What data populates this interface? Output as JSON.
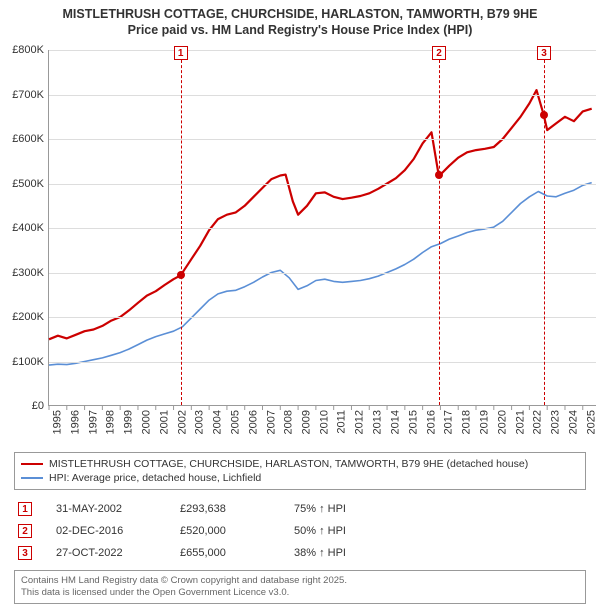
{
  "title": {
    "line1": "MISTLETHRUSH COTTAGE, CHURCHSIDE, HARLASTON, TAMWORTH, B79 9HE",
    "line2": "Price paid vs. HM Land Registry's House Price Index (HPI)"
  },
  "chart": {
    "type": "line",
    "background_color": "#ffffff",
    "grid_color": "#dddddd",
    "axis_color": "#999999",
    "xlim": [
      1995,
      2025.8
    ],
    "ylim": [
      0,
      800000
    ],
    "y_ticks": [
      0,
      100000,
      200000,
      300000,
      400000,
      500000,
      600000,
      700000,
      800000
    ],
    "y_tick_labels": [
      "£0",
      "£100K",
      "£200K",
      "£300K",
      "£400K",
      "£500K",
      "£600K",
      "£700K",
      "£800K"
    ],
    "x_ticks": [
      1995,
      1996,
      1997,
      1998,
      1999,
      2000,
      2001,
      2002,
      2003,
      2004,
      2005,
      2006,
      2007,
      2008,
      2009,
      2010,
      2011,
      2012,
      2013,
      2014,
      2015,
      2016,
      2017,
      2018,
      2019,
      2020,
      2021,
      2022,
      2023,
      2024,
      2025
    ],
    "series": [
      {
        "name": "price_paid",
        "label": "MISTLETHRUSH COTTAGE, CHURCHSIDE, HARLASTON, TAMWORTH, B79 9HE (detached house)",
        "color": "#cc0000",
        "line_width": 2.2,
        "points": [
          [
            1995.0,
            150000
          ],
          [
            1995.5,
            158000
          ],
          [
            1996.0,
            152000
          ],
          [
            1996.5,
            160000
          ],
          [
            1997.0,
            168000
          ],
          [
            1997.5,
            172000
          ],
          [
            1998.0,
            180000
          ],
          [
            1998.5,
            192000
          ],
          [
            1999.0,
            200000
          ],
          [
            1999.5,
            215000
          ],
          [
            2000.0,
            232000
          ],
          [
            2000.5,
            248000
          ],
          [
            2001.0,
            258000
          ],
          [
            2001.5,
            272000
          ],
          [
            2002.0,
            285000
          ],
          [
            2002.4,
            293638
          ],
          [
            2003.0,
            330000
          ],
          [
            2003.5,
            360000
          ],
          [
            2004.0,
            395000
          ],
          [
            2004.5,
            420000
          ],
          [
            2005.0,
            430000
          ],
          [
            2005.5,
            435000
          ],
          [
            2006.0,
            450000
          ],
          [
            2006.5,
            470000
          ],
          [
            2007.0,
            490000
          ],
          [
            2007.5,
            510000
          ],
          [
            2008.0,
            518000
          ],
          [
            2008.3,
            520000
          ],
          [
            2008.7,
            460000
          ],
          [
            2009.0,
            430000
          ],
          [
            2009.5,
            450000
          ],
          [
            2010.0,
            478000
          ],
          [
            2010.5,
            480000
          ],
          [
            2011.0,
            470000
          ],
          [
            2011.5,
            465000
          ],
          [
            2012.0,
            468000
          ],
          [
            2012.5,
            472000
          ],
          [
            2013.0,
            478000
          ],
          [
            2013.5,
            488000
          ],
          [
            2014.0,
            500000
          ],
          [
            2014.5,
            512000
          ],
          [
            2015.0,
            530000
          ],
          [
            2015.5,
            555000
          ],
          [
            2016.0,
            590000
          ],
          [
            2016.5,
            615000
          ],
          [
            2016.9,
            520000
          ],
          [
            2017.0,
            520000
          ],
          [
            2017.5,
            540000
          ],
          [
            2018.0,
            558000
          ],
          [
            2018.5,
            570000
          ],
          [
            2019.0,
            575000
          ],
          [
            2019.5,
            578000
          ],
          [
            2020.0,
            582000
          ],
          [
            2020.5,
            600000
          ],
          [
            2021.0,
            625000
          ],
          [
            2021.5,
            650000
          ],
          [
            2022.0,
            680000
          ],
          [
            2022.4,
            710000
          ],
          [
            2022.8,
            655000
          ],
          [
            2023.0,
            620000
          ],
          [
            2023.5,
            635000
          ],
          [
            2024.0,
            650000
          ],
          [
            2024.5,
            640000
          ],
          [
            2025.0,
            662000
          ],
          [
            2025.5,
            668000
          ]
        ]
      },
      {
        "name": "hpi",
        "label": "HPI: Average price, detached house, Lichfield",
        "color": "#5b8fd6",
        "line_width": 1.6,
        "points": [
          [
            1995.0,
            92000
          ],
          [
            1995.5,
            94000
          ],
          [
            1996.0,
            93000
          ],
          [
            1996.5,
            96000
          ],
          [
            1997.0,
            100000
          ],
          [
            1997.5,
            104000
          ],
          [
            1998.0,
            108000
          ],
          [
            1998.5,
            114000
          ],
          [
            1999.0,
            120000
          ],
          [
            1999.5,
            128000
          ],
          [
            2000.0,
            138000
          ],
          [
            2000.5,
            148000
          ],
          [
            2001.0,
            156000
          ],
          [
            2001.5,
            162000
          ],
          [
            2002.0,
            168000
          ],
          [
            2002.5,
            178000
          ],
          [
            2003.0,
            198000
          ],
          [
            2003.5,
            218000
          ],
          [
            2004.0,
            238000
          ],
          [
            2004.5,
            252000
          ],
          [
            2005.0,
            258000
          ],
          [
            2005.5,
            260000
          ],
          [
            2006.0,
            268000
          ],
          [
            2006.5,
            278000
          ],
          [
            2007.0,
            290000
          ],
          [
            2007.5,
            300000
          ],
          [
            2008.0,
            305000
          ],
          [
            2008.5,
            288000
          ],
          [
            2009.0,
            262000
          ],
          [
            2009.5,
            270000
          ],
          [
            2010.0,
            282000
          ],
          [
            2010.5,
            285000
          ],
          [
            2011.0,
            280000
          ],
          [
            2011.5,
            278000
          ],
          [
            2012.0,
            280000
          ],
          [
            2012.5,
            282000
          ],
          [
            2013.0,
            286000
          ],
          [
            2013.5,
            292000
          ],
          [
            2014.0,
            300000
          ],
          [
            2014.5,
            308000
          ],
          [
            2015.0,
            318000
          ],
          [
            2015.5,
            330000
          ],
          [
            2016.0,
            345000
          ],
          [
            2016.5,
            358000
          ],
          [
            2017.0,
            365000
          ],
          [
            2017.5,
            375000
          ],
          [
            2018.0,
            382000
          ],
          [
            2018.5,
            390000
          ],
          [
            2019.0,
            395000
          ],
          [
            2019.5,
            398000
          ],
          [
            2020.0,
            402000
          ],
          [
            2020.5,
            415000
          ],
          [
            2021.0,
            435000
          ],
          [
            2021.5,
            455000
          ],
          [
            2022.0,
            470000
          ],
          [
            2022.5,
            482000
          ],
          [
            2023.0,
            472000
          ],
          [
            2023.5,
            470000
          ],
          [
            2024.0,
            478000
          ],
          [
            2024.5,
            485000
          ],
          [
            2025.0,
            496000
          ],
          [
            2025.5,
            502000
          ]
        ]
      }
    ],
    "event_markers": [
      {
        "n": "1",
        "x": 2002.4,
        "y": 293638,
        "color": "#cc0000"
      },
      {
        "n": "2",
        "x": 2016.92,
        "y": 520000,
        "color": "#cc0000"
      },
      {
        "n": "3",
        "x": 2022.82,
        "y": 655000,
        "color": "#cc0000"
      }
    ]
  },
  "legend": {
    "items": [
      {
        "color": "#cc0000",
        "width": 2.5,
        "label_path": "chart.series.0.label"
      },
      {
        "color": "#5b8fd6",
        "width": 2,
        "label_path": "chart.series.1.label"
      }
    ]
  },
  "events_table": {
    "rows": [
      {
        "n": "1",
        "date": "31-MAY-2002",
        "price": "£293,638",
        "pct": "75% ↑ HPI"
      },
      {
        "n": "2",
        "date": "02-DEC-2016",
        "price": "£520,000",
        "pct": "50% ↑ HPI"
      },
      {
        "n": "3",
        "date": "27-OCT-2022",
        "price": "£655,000",
        "pct": "38% ↑ HPI"
      }
    ]
  },
  "footer": {
    "line1": "Contains HM Land Registry data © Crown copyright and database right 2025.",
    "line2": "This data is licensed under the Open Government Licence v3.0."
  }
}
